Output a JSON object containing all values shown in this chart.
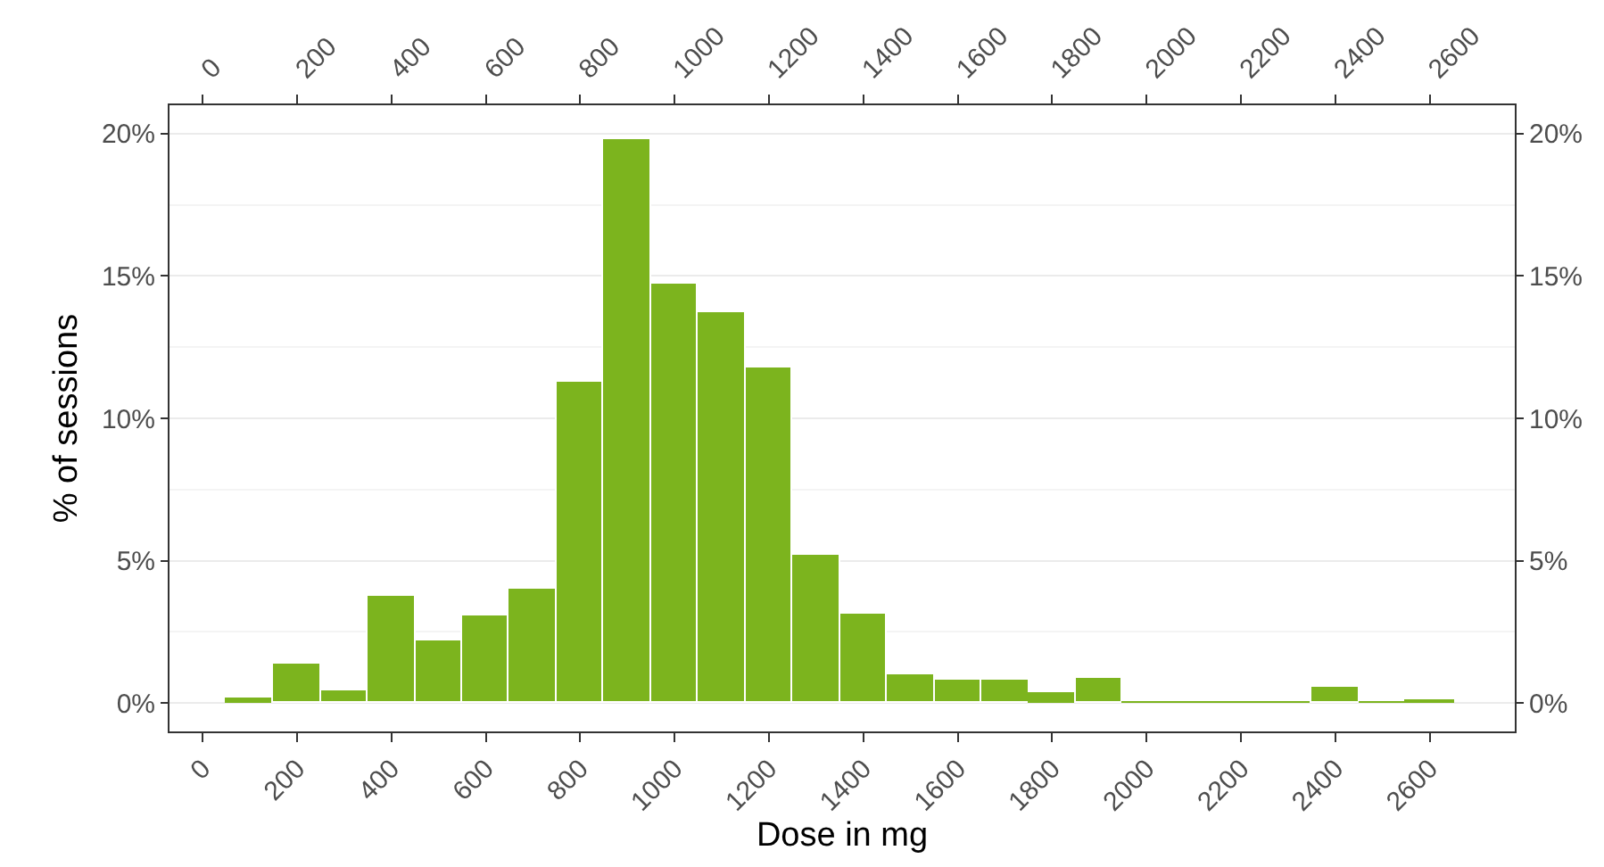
{
  "chart_data": {
    "type": "histogram",
    "xlabel": "Dose in mg",
    "ylabel": "% of sessions",
    "bins": [
      50,
      150,
      250,
      350,
      450,
      550,
      650,
      750,
      850,
      950,
      1050,
      1150,
      1250,
      1350,
      1450,
      1550,
      1650,
      1750,
      1850,
      1950,
      2050,
      2150,
      2250,
      2350,
      2450,
      2550,
      2650
    ],
    "values": [
      0.1,
      1.4,
      0.45,
      3.75,
      2.2,
      3.05,
      4.0,
      11.3,
      19.8,
      14.75,
      13.7,
      11.8,
      5.2,
      3.15,
      1.0,
      0.8,
      0.8,
      0.3,
      0.9,
      0,
      0,
      0,
      0,
      0.55,
      0,
      0.05
    ],
    "color": "#7cb41e",
    "xlim": [
      -70,
      2780
    ],
    "xticks": [
      0,
      200,
      400,
      600,
      800,
      1000,
      1200,
      1400,
      1600,
      1800,
      2000,
      2200,
      2400,
      2600
    ],
    "x2lim": [
      -70,
      2780
    ],
    "x2ticks": [
      0,
      200,
      400,
      600,
      800,
      1000,
      1200,
      1400,
      1600,
      1800,
      2000,
      2200,
      2400,
      2600
    ],
    "ylim": [
      -1,
      21
    ],
    "yticks": [
      {
        "value": 0,
        "label": "0%"
      },
      {
        "value": 5,
        "label": "5%"
      },
      {
        "value": 10,
        "label": "10%"
      },
      {
        "value": 15,
        "label": "15%"
      },
      {
        "value": 20,
        "label": "20%"
      }
    ],
    "y2lim": [
      -1,
      21
    ],
    "y2ticks": [
      {
        "value": 0,
        "label": "0%"
      },
      {
        "value": 5,
        "label": "5%"
      },
      {
        "value": 10,
        "label": "10%"
      },
      {
        "value": 15,
        "label": "15%"
      },
      {
        "value": 20,
        "label": "20%"
      }
    ],
    "grid": "y",
    "legend": false
  }
}
